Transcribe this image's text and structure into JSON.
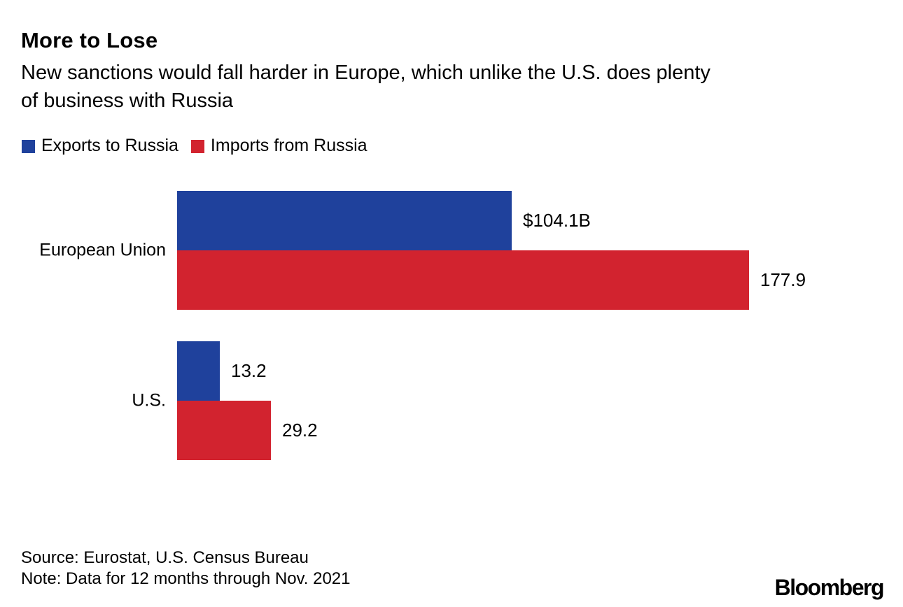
{
  "header": {
    "title": "More to Lose",
    "subtitle": "New sanctions would fall harder in Europe, which unlike the U.S. does plenty of business with Russia",
    "subtitle_lines": [
      "New sanctions would fall harder in Europe, which unlike the U.S. does plenty",
      "of business with Russia"
    ]
  },
  "legend": [
    {
      "label": "Exports to Russia",
      "color": "#1f419c"
    },
    {
      "label": "Imports from Russia",
      "color": "#d2232f"
    }
  ],
  "chart_data": {
    "type": "bar",
    "orientation": "horizontal",
    "unit": "USD billions",
    "categories": [
      "European Union",
      "U.S."
    ],
    "series": [
      {
        "name": "Exports to Russia",
        "color": "#1f419c",
        "values": [
          104.1,
          13.2
        ],
        "value_labels": [
          "$104.1B",
          "13.2"
        ]
      },
      {
        "name": "Imports from Russia",
        "color": "#d2232f",
        "values": [
          177.9,
          29.2
        ],
        "value_labels": [
          "177.9",
          "29.2"
        ]
      }
    ],
    "xlim": [
      0,
      180
    ],
    "grid": false,
    "axes_shown": false,
    "legend_position": "top-left",
    "value_labels_shown": true
  },
  "footer": {
    "source": "Source: Eurostat, U.S. Census Bureau",
    "note": "Note: Data for 12 months through Nov. 2021",
    "brand": "Bloomberg"
  },
  "colors": {
    "background": "#ffffff",
    "text": "#000000",
    "exports_blue": "#1f419c",
    "imports_red": "#d2232f"
  }
}
